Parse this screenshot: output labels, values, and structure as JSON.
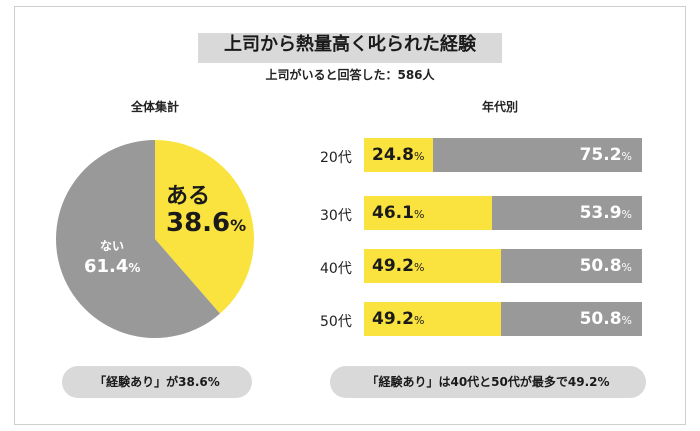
{
  "title": "上司から熱量高く叱られた経験",
  "subtitle": "上司がいると回答した：586人",
  "colors": {
    "yes": "#fae33e",
    "no": "#999999",
    "band": "#d9d9d9"
  },
  "chart_data": [
    {
      "type": "pie",
      "title": "全体集計",
      "slices": [
        {
          "label": "ある",
          "value": 38.6,
          "display": "38.6",
          "color": "#fae33e"
        },
        {
          "label": "ない",
          "value": 61.4,
          "display": "61.4",
          "color": "#999999"
        }
      ],
      "unit": "%"
    },
    {
      "type": "bar",
      "orientation": "horizontal",
      "stacked": true,
      "title": "年代別",
      "categories": [
        "20代",
        "30代",
        "40代",
        "50代"
      ],
      "series": [
        {
          "values": [
            24.8,
            46.1,
            49.2,
            49.2
          ],
          "display": [
            "24.8",
            "46.1",
            "49.2",
            "49.2"
          ],
          "color": "#fae33e"
        },
        {
          "values": [
            75.2,
            53.9,
            50.8,
            50.8
          ],
          "display": [
            "75.2",
            "53.9",
            "50.8",
            "50.8"
          ],
          "color": "#999999"
        }
      ],
      "unit": "%"
    }
  ],
  "footer": {
    "left_note": "「経験あり」が38.6%",
    "right_note": "「経験あり」は40代と50代が最多で49.2%"
  }
}
